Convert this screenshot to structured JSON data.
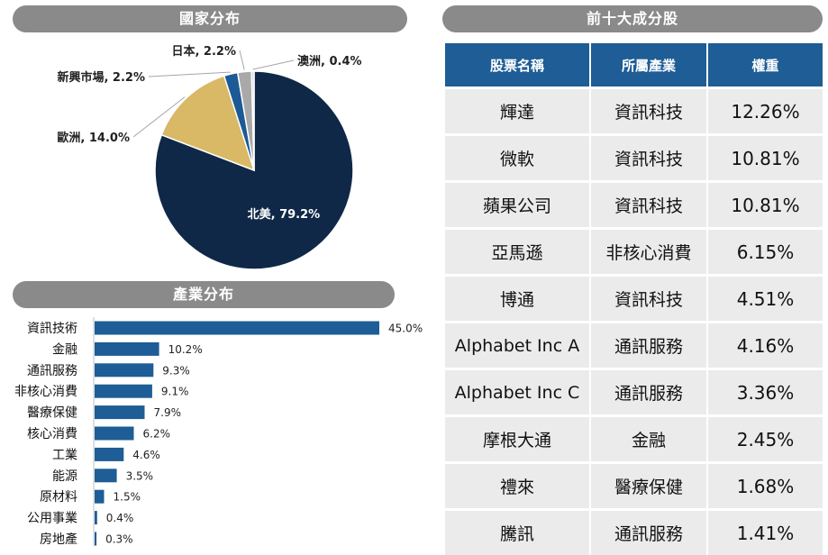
{
  "pie_section": {
    "title": "國家分布"
  },
  "bar_section": {
    "title": "產業分布"
  },
  "table_section": {
    "title": "前十大成分股",
    "headers": [
      "股票名稱",
      "所屬產業",
      "權重"
    ],
    "rows": [
      {
        "name": "輝達",
        "industry": "資訊科技",
        "weight": "12.26%"
      },
      {
        "name": "微軟",
        "industry": "資訊科技",
        "weight": "10.81%"
      },
      {
        "name": "蘋果公司",
        "industry": "資訊科技",
        "weight": "10.81%"
      },
      {
        "name": "亞馬遜",
        "industry": "非核心消費",
        "weight": "6.15%"
      },
      {
        "name": "博通",
        "industry": "資訊科技",
        "weight": "4.51%"
      },
      {
        "name": "Alphabet Inc A",
        "industry": "通訊服務",
        "weight": "4.16%"
      },
      {
        "name": "Alphabet Inc C",
        "industry": "通訊服務",
        "weight": "3.36%"
      },
      {
        "name": "摩根大通",
        "industry": "金融",
        "weight": "2.45%"
      },
      {
        "name": "禮來",
        "industry": "醫療保健",
        "weight": "1.68%"
      },
      {
        "name": "騰訊",
        "industry": "通訊服務",
        "weight": "1.41%"
      }
    ]
  },
  "chart_data": [
    {
      "type": "pie",
      "title": "國家分布",
      "categories": [
        "北美",
        "歐洲",
        "新興市場",
        "日本",
        "澳洲"
      ],
      "values": [
        79.2,
        14.0,
        2.2,
        2.2,
        0.4
      ],
      "labels": [
        "北美, 79.2%",
        "歐洲, 14.0%",
        "新興市場, 2.2%",
        "日本, 2.2%",
        "澳洲, 0.4%"
      ],
      "colors": [
        "#0f2847",
        "#d9b866",
        "#1c5a96",
        "#a9a9a9",
        "#d9d9d9"
      ]
    },
    {
      "type": "bar",
      "orientation": "horizontal",
      "title": "產業分布",
      "categories": [
        "資訊技術",
        "金融",
        "通訊服務",
        "非核心消費",
        "醫療保健",
        "核心消費",
        "工業",
        "能源",
        "原材料",
        "公用事業",
        "房地產"
      ],
      "values": [
        45.0,
        10.2,
        9.3,
        9.1,
        7.9,
        6.2,
        4.6,
        3.5,
        1.5,
        0.4,
        0.3
      ],
      "labels": [
        "45.0%",
        "10.2%",
        "9.3%",
        "9.1%",
        "7.9%",
        "6.2%",
        "4.6%",
        "3.5%",
        "1.5%",
        "0.4%",
        "0.3%"
      ],
      "color": "#1e5d95"
    }
  ]
}
